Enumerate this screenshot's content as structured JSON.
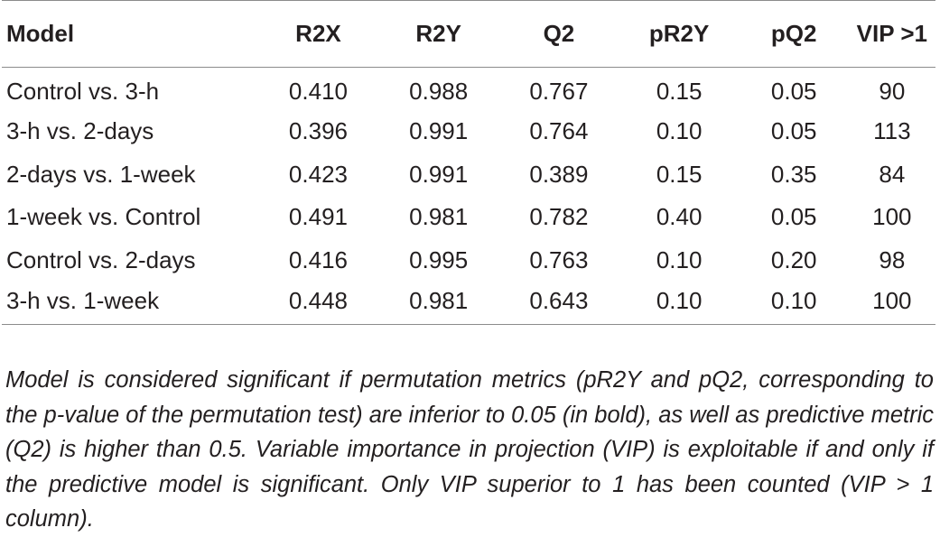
{
  "table": {
    "headers": [
      "Model",
      "R2X",
      "R2Y",
      "Q2",
      "pR2Y",
      "pQ2",
      "VIP >1"
    ],
    "rows": [
      [
        "Control vs. 3-h",
        "0.410",
        "0.988",
        "0.767",
        "0.15",
        "0.05",
        "90"
      ],
      [
        "3-h vs. 2-days",
        "0.396",
        "0.991",
        "0.764",
        "0.10",
        "0.05",
        "113"
      ],
      [
        "2-days vs. 1-week",
        "0.423",
        "0.991",
        "0.389",
        "0.15",
        "0.35",
        "84"
      ],
      [
        "1-week vs. Control",
        "0.491",
        "0.981",
        "0.782",
        "0.40",
        "0.05",
        "100"
      ],
      [
        "Control vs. 2-days",
        "0.416",
        "0.995",
        "0.763",
        "0.10",
        "0.20",
        "98"
      ],
      [
        "3-h vs. 1-week",
        "0.448",
        "0.981",
        "0.643",
        "0.10",
        "0.10",
        "100"
      ]
    ]
  },
  "footnote": "Model is considered significant if permutation metrics (pR2Y and pQ2, corresponding to the p-value of the permutation test) are inferior to 0.05 (in bold), as well as predictive metric (Q2) is higher than 0.5. Variable importance in projection (VIP) is exploitable if and only if the predictive model is significant. Only VIP superior to 1 has been counted (VIP > 1 column).",
  "colors": {
    "text": "#231f20",
    "rule": "#8c8c8c",
    "background": "#ffffff"
  }
}
